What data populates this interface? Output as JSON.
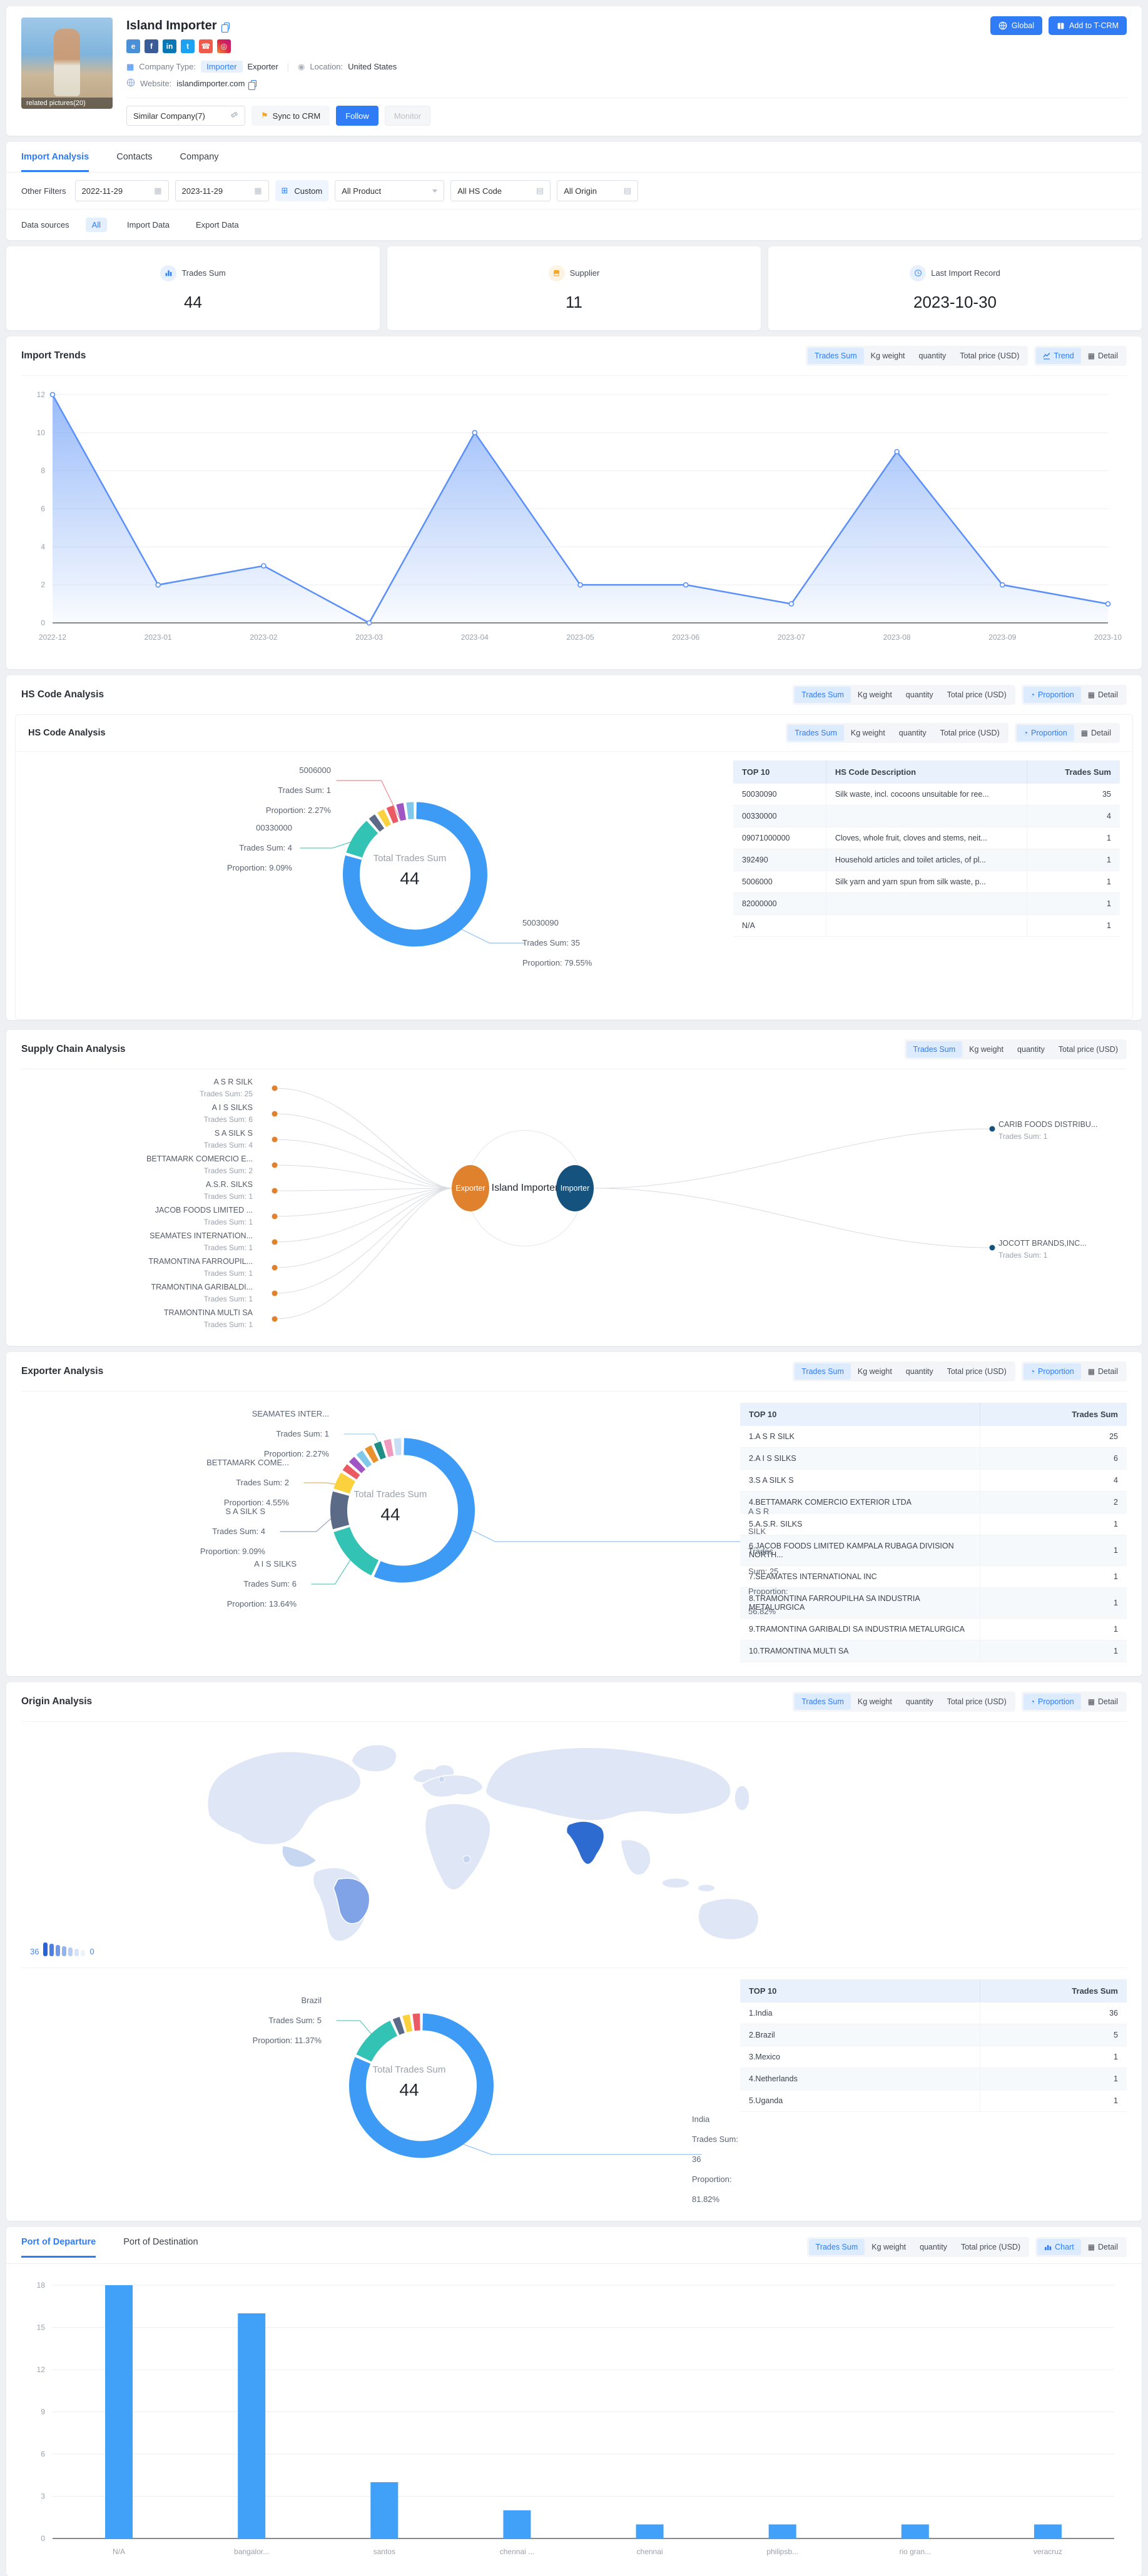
{
  "accent": "#2f7cf6",
  "header": {
    "company_name": "Island Importer",
    "related_pictures": "related pictures(20)",
    "social": [
      {
        "icon": "website-icon",
        "bg": "#4a90d9",
        "glyph": "e"
      },
      {
        "icon": "facebook-icon",
        "bg": "#3a5a98",
        "glyph": "f"
      },
      {
        "icon": "linkedin-icon",
        "bg": "#0a77b5",
        "glyph": "in"
      },
      {
        "icon": "twitter-icon",
        "bg": "#1da1f2",
        "glyph": "t"
      },
      {
        "icon": "phone-icon",
        "bg": "#f05b4c",
        "glyph": "☎"
      },
      {
        "icon": "instagram-icon",
        "bg": "linear-gradient(45deg,#f09433,#dc2743,#bc1888)",
        "glyph": "◎"
      }
    ],
    "company_type_label": "Company Type:",
    "type_importer": "Importer",
    "type_exporter": "Exporter",
    "location_label": "Location:",
    "location_value": "United States",
    "website_label": "Website:",
    "website_value": "islandimporter.com",
    "similar_company": "Similar Company(7)",
    "sync_to_crm": "Sync to CRM",
    "follow": "Follow",
    "monitor": "Monitor",
    "global_btn": "Global",
    "add_to_tcrm": "Add to T-CRM"
  },
  "tabs": {
    "t1": "Import Analysis",
    "t2": "Contacts",
    "t3": "Company"
  },
  "filters": {
    "label": "Other Filters",
    "date_from": "2022-11-29",
    "date_to": "2023-11-29",
    "custom": "Custom",
    "product": "All Product",
    "hs_code": "All HS Code",
    "origin": "All Origin"
  },
  "data_sources": {
    "label": "Data sources",
    "all": "All",
    "import": "Import Data",
    "export": "Export Data"
  },
  "stats": {
    "s1": {
      "label": "Trades Sum",
      "value": "44"
    },
    "s2": {
      "label": "Supplier",
      "value": "11"
    },
    "s3": {
      "label": "Last Import Record",
      "value": "2023-10-30"
    }
  },
  "metric_toggles": [
    "Trades Sum",
    "Kg weight",
    "quantity",
    "Total price (USD)"
  ],
  "view_toggles": {
    "trend": [
      {
        "icon": "trend",
        "label": "Trend",
        "active": true
      },
      {
        "icon": "table",
        "label": "Detail"
      }
    ],
    "proportion": [
      {
        "icon": "pie",
        "label": "Proportion",
        "active": true
      },
      {
        "icon": "table",
        "label": "Detail"
      }
    ],
    "chart": [
      {
        "icon": "bars",
        "label": "Chart",
        "active": true
      },
      {
        "icon": "table",
        "label": "Detail"
      }
    ]
  },
  "import_trends": {
    "title": "Import Trends"
  },
  "hs_section": {
    "title": "HS Code Analysis",
    "inner_title": "HS Code Analysis",
    "center_label": "Total Trades Sum",
    "center_value": "44",
    "callouts": [
      {
        "name": "5006000",
        "sum": "Trades Sum: 1",
        "prop": "Proportion: 2.27%"
      },
      {
        "name": "00330000",
        "sum": "Trades Sum: 4",
        "prop": "Proportion: 9.09%"
      },
      {
        "name": "50030090",
        "sum": "Trades Sum: 35",
        "prop": "Proportion: 79.55%"
      }
    ],
    "table": {
      "headers": [
        "TOP 10",
        "HS Code Description",
        "Trades Sum"
      ],
      "rows": [
        [
          "50030090",
          "Silk waste, incl. cocoons unsuitable for ree...",
          "35"
        ],
        [
          "00330000",
          "",
          "4"
        ],
        [
          "09071000000",
          "Cloves, whole fruit, cloves and stems, neit...",
          "1"
        ],
        [
          "392490",
          "Household articles and toilet articles, of pl...",
          "1"
        ],
        [
          "5006000",
          "Silk yarn and yarn spun from silk waste, p...",
          "1"
        ],
        [
          "82000000",
          "",
          "1"
        ],
        [
          "N/A",
          "",
          "1"
        ]
      ]
    }
  },
  "supply_chain": {
    "title": "Supply Chain Analysis",
    "center": "Island Importer",
    "left_node": "Exporter",
    "right_node": "Importer",
    "suppliers": [
      {
        "name": "A S R SILK",
        "sum": "Trades Sum: 25"
      },
      {
        "name": "A I S SILKS",
        "sum": "Trades Sum: 6"
      },
      {
        "name": "S A SILK S",
        "sum": "Trades Sum: 4"
      },
      {
        "name": "BETTAMARK COMERCIO E...",
        "sum": "Trades Sum: 2"
      },
      {
        "name": "A.S.R. SILKS",
        "sum": "Trades Sum: 1"
      },
      {
        "name": "JACOB FOODS LIMITED ...",
        "sum": "Trades Sum: 1"
      },
      {
        "name": "SEAMATES INTERNATION...",
        "sum": "Trades Sum: 1"
      },
      {
        "name": "TRAMONTINA FARROUPIL...",
        "sum": "Trades Sum: 1"
      },
      {
        "name": "TRAMONTINA GARIBALDI...",
        "sum": "Trades Sum: 1"
      },
      {
        "name": "TRAMONTINA MULTI SA",
        "sum": "Trades Sum: 1"
      }
    ],
    "customers": [
      {
        "name": "CARIB FOODS DISTRIBU...",
        "sum": "Trades Sum: 1"
      },
      {
        "name": "JOCOTT BRANDS,INC...",
        "sum": "Trades Sum: 1"
      }
    ]
  },
  "exporter_section": {
    "title": "Exporter Analysis",
    "center_label": "Total Trades Sum",
    "center_value": "44",
    "callouts": [
      {
        "name": "SEAMATES INTER...",
        "sum": "Trades Sum: 1",
        "prop": "Proportion: 2.27%"
      },
      {
        "name": "BETTAMARK COME...",
        "sum": "Trades Sum: 2",
        "prop": "Proportion: 4.55%"
      },
      {
        "name": "S A SILK S",
        "sum": "Trades Sum: 4",
        "prop": "Proportion: 9.09%"
      },
      {
        "name": "A I S SILKS",
        "sum": "Trades Sum: 6",
        "prop": "Proportion: 13.64%"
      },
      {
        "name": "A S R SILK",
        "sum": "Trades Sum: 25",
        "prop": "Proportion: 56.82%"
      }
    ],
    "table": {
      "headers": [
        "TOP 10",
        "Trades Sum"
      ],
      "rows": [
        [
          "1.A S R SILK",
          "25"
        ],
        [
          "2.A I S SILKS",
          "6"
        ],
        [
          "3.S A SILK S",
          "4"
        ],
        [
          "4.BETTAMARK COMERCIO EXTERIOR LTDA",
          "2"
        ],
        [
          "5.A.S.R. SILKS",
          "1"
        ],
        [
          "6.JACOB FOODS LIMITED KAMPALA RUBAGA DIVISION NORTH...",
          "1"
        ],
        [
          "7.SEAMATES INTERNATIONAL INC",
          "1"
        ],
        [
          "8.TRAMONTINA FARROUPILHA SA INDUSTRIA METALURGICA",
          "1"
        ],
        [
          "9.TRAMONTINA GARIBALDI SA INDUSTRIA METALURGICA",
          "1"
        ],
        [
          "10.TRAMONTINA MULTI SA",
          "1"
        ]
      ]
    }
  },
  "origin_section": {
    "title": "Origin Analysis",
    "legend_max": "36",
    "legend_min": "0",
    "center_label": "Total Trades Sum",
    "center_value": "44",
    "callouts": [
      {
        "name": "Brazil",
        "sum": "Trades Sum: 5",
        "prop": "Proportion: 11.37%"
      },
      {
        "name": "India",
        "sum": "Trades Sum: 36",
        "prop": "Proportion: 81.82%"
      }
    ],
    "table": {
      "headers": [
        "TOP 10",
        "Trades Sum"
      ],
      "rows": [
        [
          "1.India",
          "36"
        ],
        [
          "2.Brazil",
          "5"
        ],
        [
          "3.Mexico",
          "1"
        ],
        [
          "4.Netherlands",
          "1"
        ],
        [
          "5.Uganda",
          "1"
        ]
      ]
    }
  },
  "ports_section": {
    "tab1": "Port of Departure",
    "tab2": "Port of Destination"
  },
  "chart_data": [
    {
      "id": "import-trends",
      "type": "area",
      "title": "Import Trends (Trades Sum by month)",
      "x": [
        "2022-12",
        "2023-01",
        "2023-02",
        "2023-03",
        "2023-04",
        "2023-05",
        "2023-06",
        "2023-07",
        "2023-08",
        "2023-09",
        "2023-10"
      ],
      "values": [
        12,
        2,
        3,
        0,
        10,
        2,
        2,
        1,
        9,
        2,
        1
      ],
      "ylim": [
        0,
        12
      ],
      "yticks": [
        0,
        2,
        4,
        6,
        8,
        10,
        12
      ],
      "line_color": "#5b8ff9",
      "grid": true,
      "legend_position": "none"
    },
    {
      "id": "hs-donut",
      "type": "pie",
      "title": "HS Code proportion of Trades Sum",
      "total": 44,
      "segments": [
        {
          "name": "50030090",
          "value": 35,
          "proportion": "79.55%",
          "color": "#3d9bf5"
        },
        {
          "name": "00330000",
          "value": 4,
          "proportion": "9.09%",
          "color": "#33c3b4"
        },
        {
          "name": "09071000000",
          "value": 1,
          "proportion": "2.27%",
          "color": "#5b6b87"
        },
        {
          "name": "392490",
          "value": 1,
          "proportion": "2.27%",
          "color": "#fbd23e"
        },
        {
          "name": "5006000",
          "value": 1,
          "proportion": "2.27%",
          "color": "#ea5a62"
        },
        {
          "name": "82000000",
          "value": 1,
          "proportion": "2.27%",
          "color": "#9f55c2"
        },
        {
          "name": "N/A",
          "value": 1,
          "proportion": "2.27%",
          "color": "#7fc8ea"
        }
      ]
    },
    {
      "id": "exporter-donut",
      "type": "pie",
      "title": "Exporter proportion of Trades Sum",
      "total": 44,
      "segments": [
        {
          "name": "A S R SILK",
          "value": 25,
          "proportion": "56.82%",
          "color": "#3d9bf5"
        },
        {
          "name": "A I S SILKS",
          "value": 6,
          "proportion": "13.64%",
          "color": "#33c3b4"
        },
        {
          "name": "S A SILK S",
          "value": 4,
          "proportion": "9.09%",
          "color": "#5b6b87"
        },
        {
          "name": "BETTAMARK COMERCIO EXTERIOR LTDA",
          "value": 2,
          "proportion": "4.55%",
          "color": "#fbd23e"
        },
        {
          "name": "A.S.R. SILKS",
          "value": 1,
          "proportion": "2.27%",
          "color": "#ea5a62"
        },
        {
          "name": "JACOB FOODS LIMITED",
          "value": 1,
          "proportion": "2.27%",
          "color": "#9f55c2"
        },
        {
          "name": "SEAMATES INTERNATIONAL INC",
          "value": 1,
          "proportion": "2.27%",
          "color": "#7fc8ea"
        },
        {
          "name": "TRAMONTINA FARROUPILHA",
          "value": 1,
          "proportion": "2.27%",
          "color": "#e8912e"
        },
        {
          "name": "TRAMONTINA GARIBALDI",
          "value": 1,
          "proportion": "2.27%",
          "color": "#1f8e85"
        },
        {
          "name": "TRAMONTINA MULTI SA",
          "value": 1,
          "proportion": "2.27%",
          "color": "#f09ac0"
        },
        {
          "name": "N/A",
          "value": 1,
          "proportion": "2.27%",
          "color": "#c9def5"
        }
      ]
    },
    {
      "id": "origin-map",
      "type": "heatmap",
      "title": "Origin map (Trades Sum by country)",
      "legend": {
        "max": 36,
        "min": 0
      },
      "countries": [
        {
          "name": "India",
          "value": 36
        },
        {
          "name": "Brazil",
          "value": 5
        },
        {
          "name": "Mexico",
          "value": 1
        },
        {
          "name": "Netherlands",
          "value": 1
        },
        {
          "name": "Uganda",
          "value": 1
        }
      ]
    },
    {
      "id": "origin-donut",
      "type": "pie",
      "title": "Origin proportion of Trades Sum",
      "total": 44,
      "segments": [
        {
          "name": "India",
          "value": 36,
          "proportion": "81.82%",
          "color": "#3d9bf5"
        },
        {
          "name": "Brazil",
          "value": 5,
          "proportion": "11.37%",
          "color": "#33c3b4"
        },
        {
          "name": "Mexico",
          "value": 1,
          "proportion": "2.27%",
          "color": "#5b6b87"
        },
        {
          "name": "Netherlands",
          "value": 1,
          "proportion": "2.27%",
          "color": "#fbd23e"
        },
        {
          "name": "Uganda",
          "value": 1,
          "proportion": "2.27%",
          "color": "#ea5a62"
        }
      ]
    },
    {
      "id": "ports-bar",
      "type": "bar",
      "title": "Port of Departure (Trades Sum)",
      "categories": [
        "N/A",
        "bangalor...",
        "santos",
        "chennai ...",
        "chennai",
        "philipsb...",
        "rio gran...",
        "veracruz"
      ],
      "values": [
        18,
        16,
        4,
        2,
        1,
        1,
        1,
        1
      ],
      "ylim": [
        0,
        18
      ],
      "yticks": [
        0,
        3,
        6,
        9,
        12,
        15,
        18
      ],
      "bar_color": "#41a0f7",
      "grid": true
    }
  ]
}
